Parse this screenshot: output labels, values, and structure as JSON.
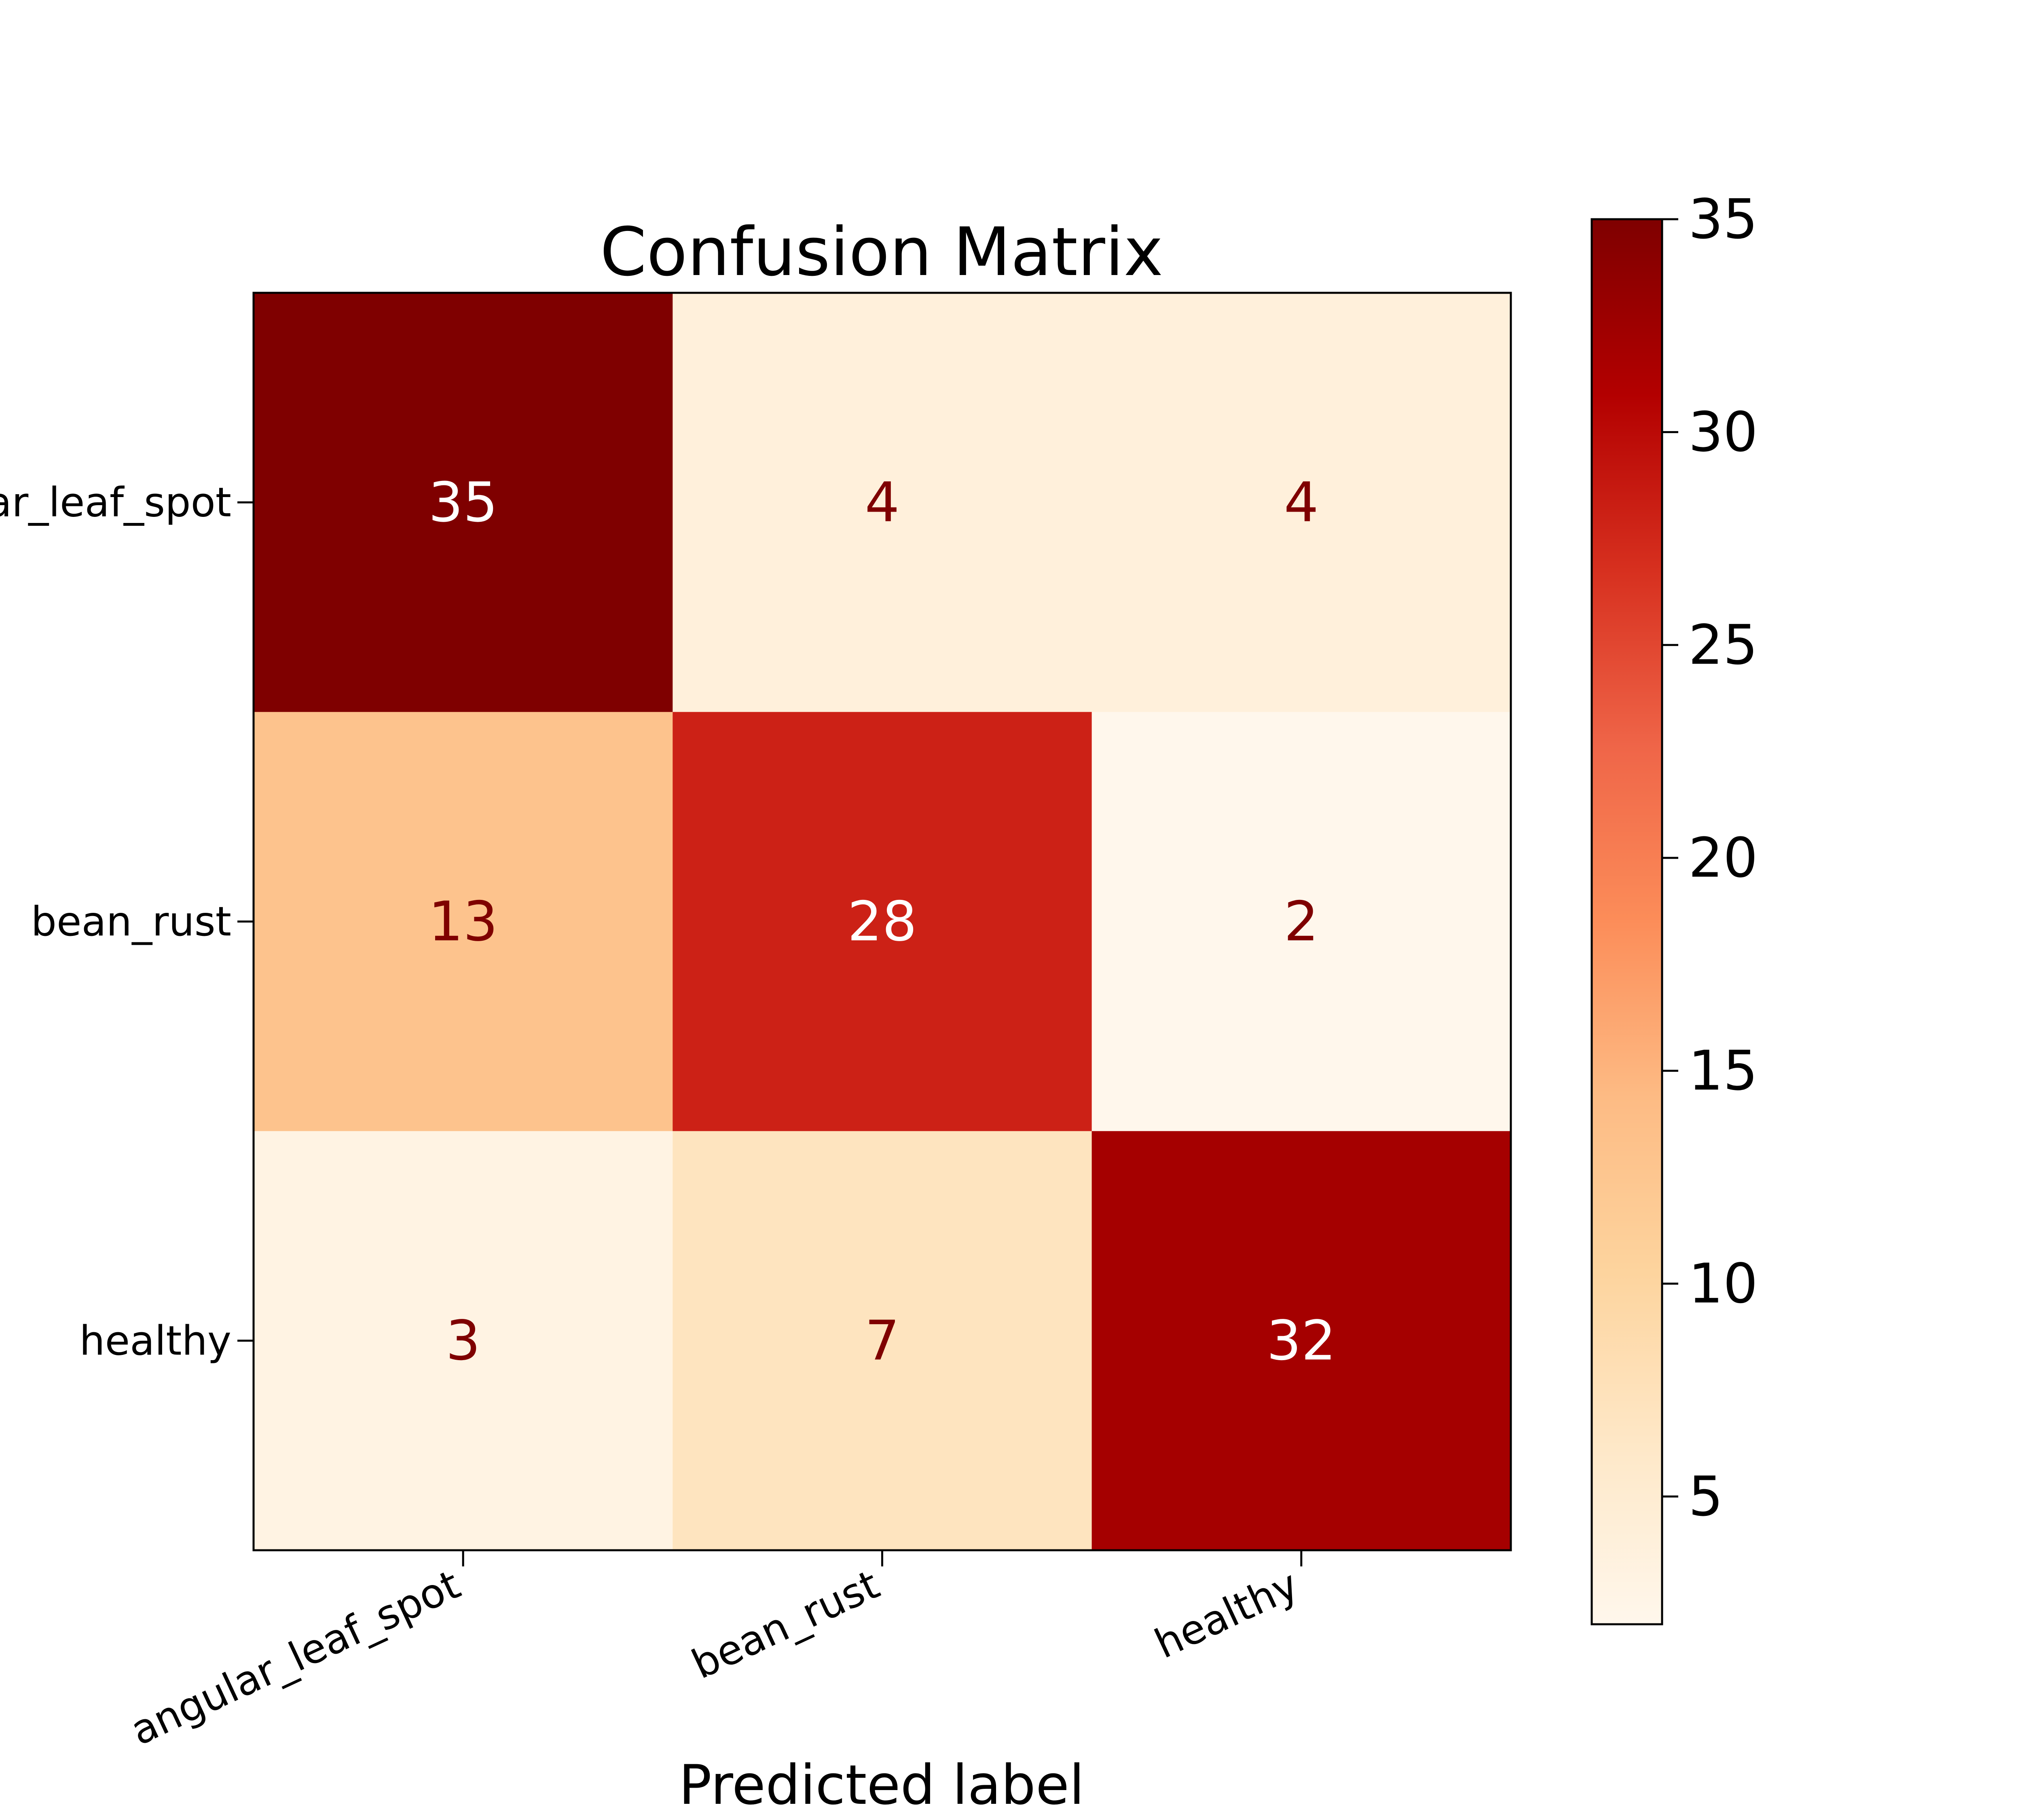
{
  "chart_data": {
    "type": "heatmap",
    "title": "Confusion Matrix",
    "xlabel": "Predicted label",
    "ylabel": "",
    "x_categories": [
      "angular_leaf_spot",
      "bean_rust",
      "healthy"
    ],
    "y_categories": [
      "angular_leaf_spot",
      "bean_rust",
      "healthy"
    ],
    "values": [
      [
        35,
        4,
        4
      ],
      [
        13,
        28,
        2
      ],
      [
        3,
        7,
        32
      ]
    ],
    "colormap": "OrRd",
    "colorbar": {
      "min": 2,
      "max": 35,
      "ticks": [
        5,
        10,
        15,
        20,
        25,
        30,
        35
      ],
      "tick_labels": [
        "5",
        "10",
        "15",
        "20",
        "25",
        "30",
        "35"
      ]
    },
    "text_color_dark": "#7f0000",
    "text_color_light": "#ffffff"
  }
}
